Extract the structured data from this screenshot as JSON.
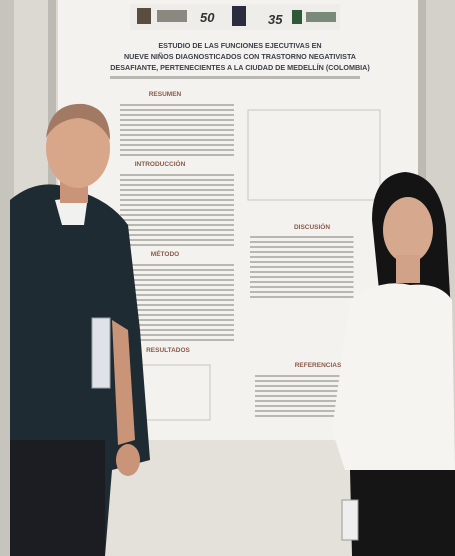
{
  "poster": {
    "logos": [
      "50",
      "35"
    ],
    "title_lines": [
      "ESTUDIO DE LAS FUNCIONES EJECUTIVAS EN",
      "NUEVE NIÑOS DIAGNOSTICADOS CON TRASTORNO NEGATIVISTA",
      "DESAFIANTE, PERTENECIENTES A LA CIUDAD DE MEDELLÍN (COLOMBIA)"
    ],
    "sections": [
      "RESUMEN",
      "INTRODUCCIÓN",
      "MÉTODO",
      "RESULTADOS",
      "DISCUSIÓN",
      "REFERENCIAS"
    ]
  }
}
